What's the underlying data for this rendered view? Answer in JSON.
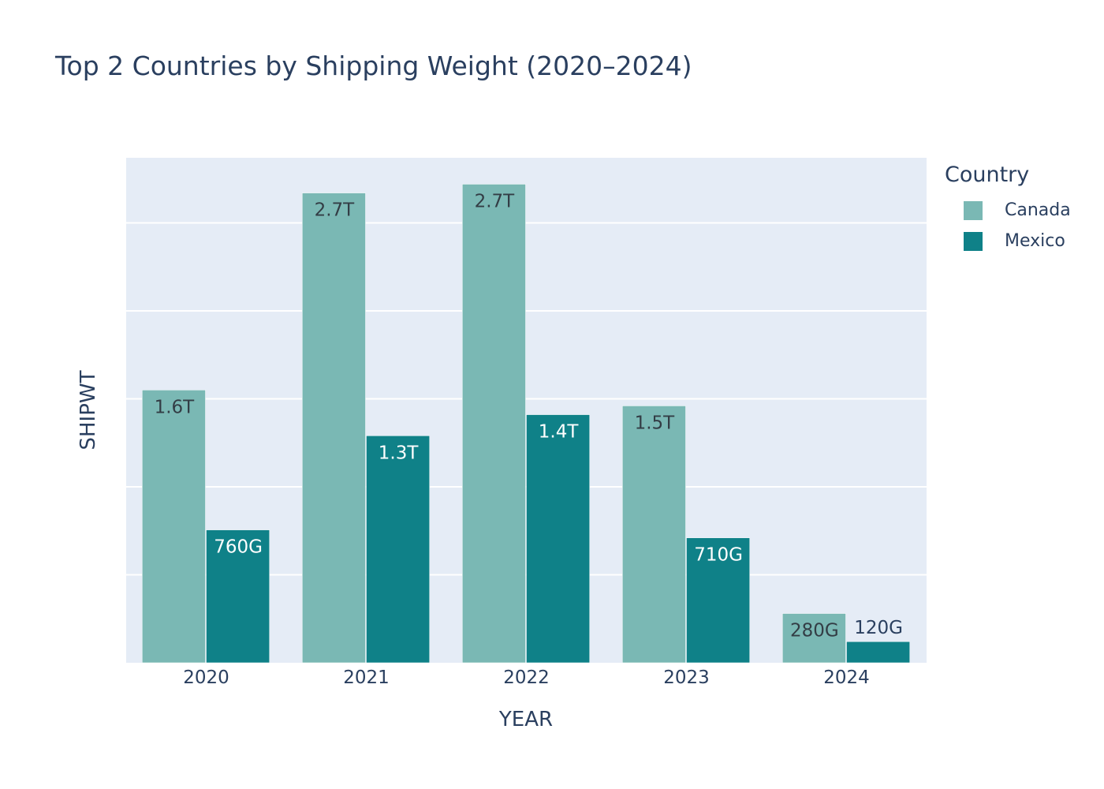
{
  "chart_data": {
    "type": "bar",
    "title": "Top 2 Countries by Shipping Weight (2020–2024)",
    "xlabel": "YEAR",
    "ylabel": "SHIPWT",
    "categories": [
      "2020",
      "2021",
      "2022",
      "2023",
      "2024"
    ],
    "ylim": [
      0,
      2.87
    ],
    "y_unit_note": "",
    "grid": true,
    "legend_title": "Country",
    "legend_position": "top-right",
    "series": [
      {
        "name": "Canada",
        "color": "#7ab8b4",
        "values": [
          1.55,
          2.67,
          2.72,
          1.46,
          0.28
        ],
        "labels": [
          "1.6T",
          "2.7T",
          "2.7T",
          "1.5T",
          "280G"
        ]
      },
      {
        "name": "Mexico",
        "color": "#0f8188",
        "values": [
          0.755,
          1.29,
          1.41,
          0.71,
          0.12
        ],
        "labels": [
          "760G",
          "1.3T",
          "1.4T",
          "710G",
          "120G"
        ]
      }
    ]
  }
}
